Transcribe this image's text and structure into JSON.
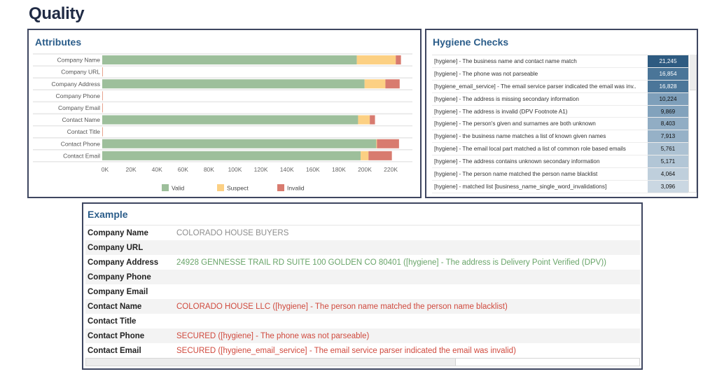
{
  "page": {
    "title": "Quality"
  },
  "attributes_panel": {
    "title": "Attributes"
  },
  "chart_data": {
    "type": "bar",
    "orientation": "horizontal",
    "stacked": true,
    "title": "Attributes",
    "categories": [
      "Company Name",
      "Company URL",
      "Company Address",
      "Company Phone",
      "Company Email",
      "Contact Name",
      "Contact Title",
      "Contact Phone",
      "Contact Email"
    ],
    "series": [
      {
        "name": "Valid",
        "color": "#9dbf9b",
        "values": [
          196000,
          0,
          202000,
          0,
          0,
          197000,
          0,
          211000,
          199000
        ]
      },
      {
        "name": "Suspect",
        "color": "#fcd083",
        "values": [
          30000,
          0,
          16000,
          0,
          0,
          9000,
          0,
          500,
          6000
        ]
      },
      {
        "name": "Invalid",
        "color": "#d87b6f",
        "values": [
          4000,
          0,
          11000,
          0,
          0,
          4000,
          0,
          17000,
          18000
        ]
      }
    ],
    "xlim": [
      0,
      230000
    ],
    "xticks": [
      0,
      20000,
      40000,
      60000,
      80000,
      100000,
      120000,
      140000,
      160000,
      180000,
      200000,
      220000
    ],
    "xtick_labels": [
      "0K",
      "20K",
      "40K",
      "60K",
      "80K",
      "100K",
      "120K",
      "140K",
      "160K",
      "180K",
      "200K",
      "220K"
    ],
    "xlabel": "",
    "ylabel": "",
    "legend_position": "bottom-center"
  },
  "hygiene_panel": {
    "title": "Hygiene Checks",
    "rows": [
      {
        "label": "[hygiene] - The business name and contact name match",
        "value": "21,245",
        "bg": "#2e5b81",
        "fg": "#ffffff"
      },
      {
        "label": "[hygiene] - The phone was not parseable",
        "value": "16,854",
        "bg": "#4a7598",
        "fg": "#ffffff"
      },
      {
        "label": "[hygiene_email_service] - The email service parser indicated the email was inv..",
        "value": "16,828",
        "bg": "#4b7699",
        "fg": "#ffffff"
      },
      {
        "label": "[hygiene] - The address is missing secondary information",
        "value": "10,224",
        "bg": "#7e9fba",
        "fg": "#111111"
      },
      {
        "label": "[hygiene] - The address is invalid (DPV Footnote A1)",
        "value": "9,869",
        "bg": "#82a2bc",
        "fg": "#111111"
      },
      {
        "label": "[hygiene] - The person's given and surnames are both unknown",
        "value": "8,403",
        "bg": "#91adc4",
        "fg": "#111111"
      },
      {
        "label": "[hygiene] - the business name matches a list of known given names",
        "value": "7,913",
        "bg": "#96b1c7",
        "fg": "#111111"
      },
      {
        "label": "[hygiene] - The email local part matched a list of common role based emails",
        "value": "5,761",
        "bg": "#adc2d3",
        "fg": "#111111"
      },
      {
        "label": "[hygiene] - The address contains unknown secondary information",
        "value": "5,171",
        "bg": "#b2c6d6",
        "fg": "#111111"
      },
      {
        "label": "[hygiene] - The person name matched the person name blacklist",
        "value": "4,064",
        "bg": "#bfcfdc",
        "fg": "#111111"
      },
      {
        "label": "[hygiene] - matched list [business_name_single_word_invalidations]",
        "value": "3,096",
        "bg": "#cad7e2",
        "fg": "#111111"
      }
    ]
  },
  "example_panel": {
    "title": "Example",
    "rows": [
      {
        "key": "Company Name",
        "value": "COLORADO HOUSE BUYERS",
        "status": "neutral"
      },
      {
        "key": "Company URL",
        "value": "",
        "status": "neutral"
      },
      {
        "key": "Company Address",
        "value": "24928 GENNESSE TRAIL RD SUITE 100 GOLDEN CO 80401 ([hygiene] - The address is Delivery Point Verified (DPV))",
        "status": "valid"
      },
      {
        "key": "Company Phone",
        "value": "",
        "status": "neutral"
      },
      {
        "key": "Company Email",
        "value": "",
        "status": "neutral"
      },
      {
        "key": "Contact Name",
        "value": "COLORADO HOUSE LLC ([hygiene] - The person name matched the person name blacklist)",
        "status": "invalid"
      },
      {
        "key": "Contact Title",
        "value": "",
        "status": "neutral"
      },
      {
        "key": "Contact Phone",
        "value": "SECURED ([hygiene] - The phone was not parseable)",
        "status": "invalid"
      },
      {
        "key": "Contact Email",
        "value": "SECURED ([hygiene_email_service] - The email service parser indicated the email was invalid)",
        "status": "invalid"
      }
    ]
  }
}
